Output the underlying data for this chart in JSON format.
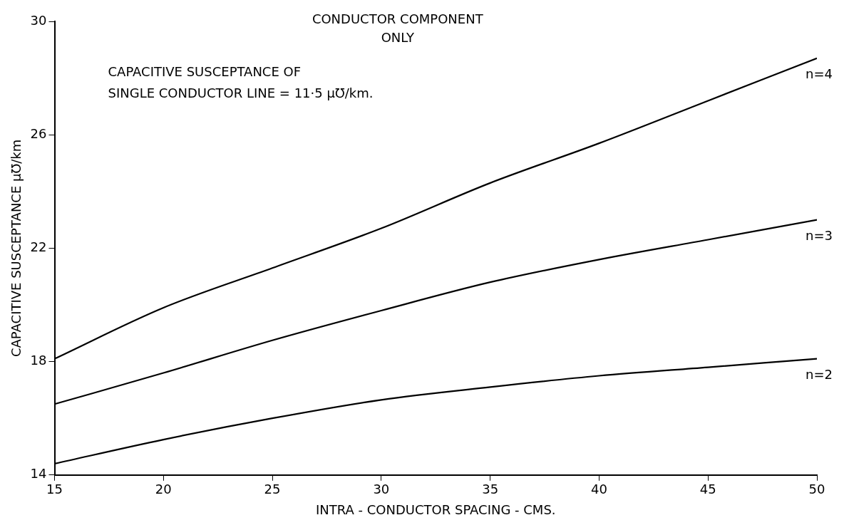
{
  "chart_data": {
    "type": "line",
    "title": "CONDUCTOR COMPONENT\nONLY",
    "xlabel": "INTRA - CONDUCTOR SPACING - CMS.",
    "ylabel": "CAPACITIVE SUSCEPTANCE µ℧/km",
    "annotations": [
      "CAPACITIVE SUSCEPTANCE OF\nSINGLE CONDUCTOR LINE = 11·5 µ℧/km."
    ],
    "x": [
      15,
      20,
      25,
      30,
      35,
      40,
      45,
      50
    ],
    "series": [
      {
        "name": "n=4",
        "color": "#000000",
        "values": [
          18.1,
          19.9,
          21.3,
          22.7,
          24.3,
          25.7,
          27.2,
          28.7
        ]
      },
      {
        "name": "n=3",
        "color": "#000000",
        "values": [
          16.5,
          17.6,
          18.75,
          19.8,
          20.8,
          21.6,
          22.3,
          23.0
        ]
      },
      {
        "name": "n=2",
        "color": "#000000",
        "values": [
          14.4,
          15.25,
          16.0,
          16.65,
          17.1,
          17.5,
          17.8,
          18.1
        ]
      }
    ],
    "xlim": [
      15,
      50
    ],
    "xticks": [
      15,
      20,
      25,
      30,
      35,
      40,
      45,
      50
    ],
    "ylim": [
      14,
      30
    ],
    "yticks": [
      14,
      18,
      22,
      26,
      30
    ],
    "grid": false,
    "legend": false,
    "marker": "none",
    "line_style": "solid"
  }
}
